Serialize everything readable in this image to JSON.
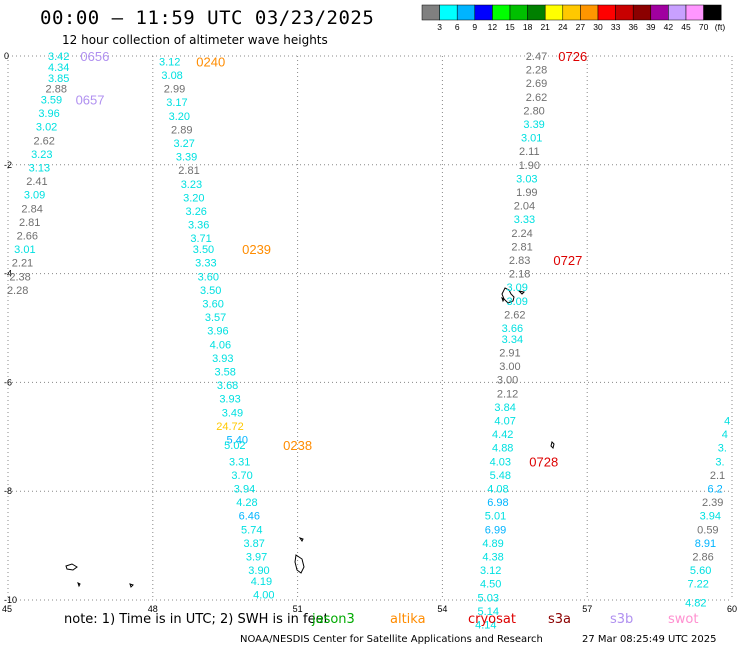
{
  "header": {
    "title": "00:00 – 11:59 UTC 03/23/2025",
    "subtitle": "12 hour collection of altimeter wave heights"
  },
  "legend": {
    "labels": [
      "3",
      "6",
      "9",
      "12",
      "15",
      "18",
      "21",
      "24",
      "27",
      "30",
      "33",
      "36",
      "39",
      "42",
      "45",
      "70"
    ],
    "unit": "(ft)",
    "colors": [
      "#808080",
      "#00ffff",
      "#00b4ff",
      "#0000ff",
      "#00ff00",
      "#00c000",
      "#008000",
      "#ffff00",
      "#ffc800",
      "#ff9600",
      "#ff0000",
      "#c80000",
      "#8b0000",
      "#a000a0",
      "#c8a0ff",
      "#ff96ff",
      "#000000"
    ]
  },
  "axes": {
    "y_labels": [
      "0",
      "-2",
      "-4",
      "-6",
      "-8",
      "-10"
    ],
    "x_labels": [
      "45",
      "48",
      "51",
      "54",
      "57",
      "60"
    ],
    "lon_range": [
      45,
      60
    ],
    "lat_range": [
      -10,
      0
    ],
    "grid": true
  },
  "tracks": [
    {
      "name": "track-1",
      "points": [
        {
          "lon": 46.05,
          "lat": 0.0,
          "v": "3.42",
          "c": "#00e0e0"
        },
        {
          "lon": 46.05,
          "lat": -0.2,
          "v": "4.34",
          "c": "#00e0e0"
        },
        {
          "lon": 46.05,
          "lat": -0.4,
          "v": "3.85",
          "c": "#00e0e0"
        },
        {
          "lon": 46.0,
          "lat": -0.6,
          "v": "2.88",
          "c": "#707070"
        },
        {
          "lon": 45.9,
          "lat": -0.8,
          "v": "3.59",
          "c": "#00e0e0"
        },
        {
          "lon": 45.85,
          "lat": -1.05,
          "v": "3.96",
          "c": "#00e0e0"
        },
        {
          "lon": 45.8,
          "lat": -1.3,
          "v": "3.02",
          "c": "#00e0e0"
        },
        {
          "lon": 45.75,
          "lat": -1.55,
          "v": "2.62",
          "c": "#707070"
        },
        {
          "lon": 45.7,
          "lat": -1.8,
          "v": "3.23",
          "c": "#00e0e0"
        },
        {
          "lon": 45.65,
          "lat": -2.05,
          "v": "3.13",
          "c": "#00e0e0"
        },
        {
          "lon": 45.6,
          "lat": -2.3,
          "v": "2.41",
          "c": "#707070"
        },
        {
          "lon": 45.55,
          "lat": -2.55,
          "v": "3.09",
          "c": "#00e0e0"
        },
        {
          "lon": 45.5,
          "lat": -2.8,
          "v": "2.84",
          "c": "#707070"
        },
        {
          "lon": 45.45,
          "lat": -3.05,
          "v": "2.81",
          "c": "#707070"
        },
        {
          "lon": 45.4,
          "lat": -3.3,
          "v": "2.66",
          "c": "#707070"
        },
        {
          "lon": 45.35,
          "lat": -3.55,
          "v": "3.01",
          "c": "#00e0e0"
        },
        {
          "lon": 45.3,
          "lat": -3.8,
          "v": "2.21",
          "c": "#707070"
        },
        {
          "lon": 45.25,
          "lat": -4.05,
          "v": "2.38",
          "c": "#707070"
        },
        {
          "lon": 45.2,
          "lat": -4.3,
          "v": "2.28",
          "c": "#707070"
        }
      ]
    },
    {
      "name": "track-2",
      "points": [
        {
          "lon": 48.35,
          "lat": -0.1,
          "v": "3.12",
          "c": "#00e0e0"
        },
        {
          "lon": 48.4,
          "lat": -0.35,
          "v": "3.08",
          "c": "#00e0e0"
        },
        {
          "lon": 48.45,
          "lat": -0.6,
          "v": "2.99",
          "c": "#707070"
        },
        {
          "lon": 48.5,
          "lat": -0.85,
          "v": "3.17",
          "c": "#00e0e0"
        },
        {
          "lon": 48.55,
          "lat": -1.1,
          "v": "3.20",
          "c": "#00e0e0"
        },
        {
          "lon": 48.6,
          "lat": -1.35,
          "v": "2.89",
          "c": "#707070"
        },
        {
          "lon": 48.65,
          "lat": -1.6,
          "v": "3.27",
          "c": "#00e0e0"
        },
        {
          "lon": 48.7,
          "lat": -1.85,
          "v": "3.39",
          "c": "#00e0e0"
        },
        {
          "lon": 48.75,
          "lat": -2.1,
          "v": "2.81",
          "c": "#707070"
        },
        {
          "lon": 48.8,
          "lat": -2.35,
          "v": "3.23",
          "c": "#00e0e0"
        },
        {
          "lon": 48.85,
          "lat": -2.6,
          "v": "3.20",
          "c": "#00e0e0"
        },
        {
          "lon": 48.9,
          "lat": -2.85,
          "v": "3.26",
          "c": "#00e0e0"
        },
        {
          "lon": 48.95,
          "lat": -3.1,
          "v": "3.36",
          "c": "#00e0e0"
        },
        {
          "lon": 49.0,
          "lat": -3.35,
          "v": "3.71",
          "c": "#00e0e0"
        },
        {
          "lon": 49.05,
          "lat": -3.55,
          "v": "3.50",
          "c": "#00e0e0"
        },
        {
          "lon": 49.1,
          "lat": -3.8,
          "v": "3.33",
          "c": "#00e0e0"
        },
        {
          "lon": 49.15,
          "lat": -4.05,
          "v": "3.60",
          "c": "#00e0e0"
        },
        {
          "lon": 49.2,
          "lat": -4.3,
          "v": "3.50",
          "c": "#00e0e0"
        },
        {
          "lon": 49.25,
          "lat": -4.55,
          "v": "3.60",
          "c": "#00e0e0"
        },
        {
          "lon": 49.3,
          "lat": -4.8,
          "v": "3.57",
          "c": "#00e0e0"
        },
        {
          "lon": 49.35,
          "lat": -5.05,
          "v": "3.96",
          "c": "#00e0e0"
        },
        {
          "lon": 49.4,
          "lat": -5.3,
          "v": "4.06",
          "c": "#00e0e0"
        },
        {
          "lon": 49.45,
          "lat": -5.55,
          "v": "3.93",
          "c": "#00e0e0"
        },
        {
          "lon": 49.5,
          "lat": -5.8,
          "v": "3.58",
          "c": "#00e0e0"
        },
        {
          "lon": 49.55,
          "lat": -6.05,
          "v": "3.68",
          "c": "#00e0e0"
        },
        {
          "lon": 49.6,
          "lat": -6.3,
          "v": "3.93",
          "c": "#00e0e0"
        },
        {
          "lon": 49.65,
          "lat": -6.55,
          "v": "3.49",
          "c": "#00e0e0"
        },
        {
          "lon": 49.6,
          "lat": -6.8,
          "v": "24.72",
          "c": "#ffc800"
        },
        {
          "lon": 49.75,
          "lat": -7.05,
          "v": "5.40",
          "c": "#00b4ff"
        },
        {
          "lon": 49.7,
          "lat": -7.15,
          "v": "5.02",
          "c": "#00e0e0"
        },
        {
          "lon": 49.8,
          "lat": -7.45,
          "v": "3.31",
          "c": "#00e0e0"
        },
        {
          "lon": 49.85,
          "lat": -7.7,
          "v": "3.70",
          "c": "#00e0e0"
        },
        {
          "lon": 49.9,
          "lat": -7.95,
          "v": "3.94",
          "c": "#00e0e0"
        },
        {
          "lon": 49.95,
          "lat": -8.2,
          "v": "4.28",
          "c": "#00e0e0"
        },
        {
          "lon": 50.0,
          "lat": -8.45,
          "v": "6.46",
          "c": "#00b4ff"
        },
        {
          "lon": 50.05,
          "lat": -8.7,
          "v": "5.74",
          "c": "#00e0e0"
        },
        {
          "lon": 50.1,
          "lat": -8.95,
          "v": "3.87",
          "c": "#00e0e0"
        },
        {
          "lon": 50.15,
          "lat": -9.2,
          "v": "3.97",
          "c": "#00e0e0"
        },
        {
          "lon": 50.2,
          "lat": -9.45,
          "v": "3.90",
          "c": "#00e0e0"
        },
        {
          "lon": 50.25,
          "lat": -9.65,
          "v": "4.19",
          "c": "#00e0e0"
        },
        {
          "lon": 50.3,
          "lat": -9.9,
          "v": "4.00",
          "c": "#00e0e0"
        }
      ]
    },
    {
      "name": "track-3",
      "points": [
        {
          "lon": 55.95,
          "lat": 0.0,
          "v": "2.47",
          "c": "#707070"
        },
        {
          "lon": 55.95,
          "lat": -0.25,
          "v": "2.28",
          "c": "#707070"
        },
        {
          "lon": 55.95,
          "lat": -0.5,
          "v": "2.69",
          "c": "#707070"
        },
        {
          "lon": 55.95,
          "lat": -0.75,
          "v": "2.62",
          "c": "#707070"
        },
        {
          "lon": 55.9,
          "lat": -1.0,
          "v": "2.80",
          "c": "#707070"
        },
        {
          "lon": 55.9,
          "lat": -1.25,
          "v": "3.39",
          "c": "#00e0e0"
        },
        {
          "lon": 55.85,
          "lat": -1.5,
          "v": "3.01",
          "c": "#00e0e0"
        },
        {
          "lon": 55.8,
          "lat": -1.75,
          "v": "2.11",
          "c": "#707070"
        },
        {
          "lon": 55.8,
          "lat": -2.0,
          "v": "1.90",
          "c": "#707070"
        },
        {
          "lon": 55.75,
          "lat": -2.25,
          "v": "3.03",
          "c": "#00e0e0"
        },
        {
          "lon": 55.75,
          "lat": -2.5,
          "v": "1.99",
          "c": "#707070"
        },
        {
          "lon": 55.7,
          "lat": -2.75,
          "v": "2.04",
          "c": "#707070"
        },
        {
          "lon": 55.7,
          "lat": -3.0,
          "v": "3.33",
          "c": "#00e0e0"
        },
        {
          "lon": 55.65,
          "lat": -3.25,
          "v": "2.24",
          "c": "#707070"
        },
        {
          "lon": 55.65,
          "lat": -3.5,
          "v": "2.81",
          "c": "#707070"
        },
        {
          "lon": 55.6,
          "lat": -3.75,
          "v": "2.83",
          "c": "#707070"
        },
        {
          "lon": 55.6,
          "lat": -4.0,
          "v": "2.18",
          "c": "#707070"
        },
        {
          "lon": 55.55,
          "lat": -4.25,
          "v": "3.09",
          "c": "#00e0e0"
        },
        {
          "lon": 55.55,
          "lat": -4.5,
          "v": "3.09",
          "c": "#00e0e0"
        },
        {
          "lon": 55.5,
          "lat": -4.75,
          "v": "2.62",
          "c": "#707070"
        },
        {
          "lon": 55.45,
          "lat": -5.0,
          "v": "3.66",
          "c": "#00e0e0"
        },
        {
          "lon": 55.45,
          "lat": -5.2,
          "v": "3.34",
          "c": "#00e0e0"
        },
        {
          "lon": 55.4,
          "lat": -5.45,
          "v": "2.91",
          "c": "#707070"
        },
        {
          "lon": 55.4,
          "lat": -5.7,
          "v": "3.00",
          "c": "#707070"
        },
        {
          "lon": 55.35,
          "lat": -5.95,
          "v": "3.00",
          "c": "#707070"
        },
        {
          "lon": 55.35,
          "lat": -6.2,
          "v": "2.12",
          "c": "#707070"
        },
        {
          "lon": 55.3,
          "lat": -6.45,
          "v": "3.84",
          "c": "#00e0e0"
        },
        {
          "lon": 55.3,
          "lat": -6.7,
          "v": "4.07",
          "c": "#00e0e0"
        },
        {
          "lon": 55.25,
          "lat": -6.95,
          "v": "4.42",
          "c": "#00e0e0"
        },
        {
          "lon": 55.25,
          "lat": -7.2,
          "v": "4.88",
          "c": "#00e0e0"
        },
        {
          "lon": 55.2,
          "lat": -7.45,
          "v": "4.03",
          "c": "#00e0e0"
        },
        {
          "lon": 55.2,
          "lat": -7.7,
          "v": "5.48",
          "c": "#00e0e0"
        },
        {
          "lon": 55.15,
          "lat": -7.95,
          "v": "4.08",
          "c": "#00e0e0"
        },
        {
          "lon": 55.15,
          "lat": -8.2,
          "v": "6.98",
          "c": "#00b4ff"
        },
        {
          "lon": 55.1,
          "lat": -8.45,
          "v": "5.01",
          "c": "#00e0e0"
        },
        {
          "lon": 55.1,
          "lat": -8.7,
          "v": "6.99",
          "c": "#00b4ff"
        },
        {
          "lon": 55.05,
          "lat": -8.95,
          "v": "4.89",
          "c": "#00e0e0"
        },
        {
          "lon": 55.05,
          "lat": -9.2,
          "v": "4.38",
          "c": "#00e0e0"
        },
        {
          "lon": 55.0,
          "lat": -9.45,
          "v": "3.12",
          "c": "#00e0e0"
        },
        {
          "lon": 55.0,
          "lat": -9.7,
          "v": "4.50",
          "c": "#00e0e0"
        },
        {
          "lon": 54.95,
          "lat": -9.95,
          "v": "5.03",
          "c": "#00e0e0"
        },
        {
          "lon": 54.95,
          "lat": -10.2,
          "v": "5.14",
          "c": "#00e0e0"
        },
        {
          "lon": 54.9,
          "lat": -10.45,
          "v": "4.14",
          "c": "#00e0e0"
        }
      ]
    },
    {
      "name": "track-4",
      "points": [
        {
          "lon": 59.9,
          "lat": -6.7,
          "v": "4",
          "c": "#00e0e0"
        },
        {
          "lon": 59.85,
          "lat": -6.95,
          "v": "4",
          "c": "#00e0e0"
        },
        {
          "lon": 59.8,
          "lat": -7.2,
          "v": "3.",
          "c": "#00e0e0"
        },
        {
          "lon": 59.75,
          "lat": -7.45,
          "v": "3.",
          "c": "#00e0e0"
        },
        {
          "lon": 59.7,
          "lat": -7.7,
          "v": "2.1",
          "c": "#707070"
        },
        {
          "lon": 59.65,
          "lat": -7.95,
          "v": "6.2",
          "c": "#00b4ff"
        },
        {
          "lon": 59.6,
          "lat": -8.2,
          "v": "2.39",
          "c": "#707070"
        },
        {
          "lon": 59.55,
          "lat": -8.45,
          "v": "3.94",
          "c": "#00e0e0"
        },
        {
          "lon": 59.5,
          "lat": -8.7,
          "v": "0.59",
          "c": "#707070"
        },
        {
          "lon": 59.45,
          "lat": -8.95,
          "v": "8.91",
          "c": "#00b4ff"
        },
        {
          "lon": 59.4,
          "lat": -9.2,
          "v": "2.86",
          "c": "#707070"
        },
        {
          "lon": 59.35,
          "lat": -9.45,
          "v": "5.60",
          "c": "#00e0e0"
        },
        {
          "lon": 59.3,
          "lat": -9.7,
          "v": "7.22",
          "c": "#00e0e0"
        },
        {
          "lon": 59.25,
          "lat": -10.05,
          "v": "4.82",
          "c": "#00e0e0"
        }
      ]
    }
  ],
  "time_labels": [
    {
      "text": "0656",
      "lon": 46.8,
      "lat": 0.0,
      "c": "#b090f0"
    },
    {
      "text": "0657",
      "lon": 46.7,
      "lat": -0.8,
      "c": "#b090f0"
    },
    {
      "text": "0240",
      "lon": 49.2,
      "lat": -0.1,
      "c": "#ff8c00"
    },
    {
      "text": "0239",
      "lon": 50.15,
      "lat": -3.55,
      "c": "#ff8c00"
    },
    {
      "text": "0238",
      "lon": 51.0,
      "lat": -7.15,
      "c": "#ff8c00"
    },
    {
      "text": "0726",
      "lon": 56.7,
      "lat": 0.0,
      "c": "#dd0000"
    },
    {
      "text": "0727",
      "lon": 56.6,
      "lat": -3.75,
      "c": "#dd0000"
    },
    {
      "text": "0728",
      "lon": 56.1,
      "lat": -7.45,
      "c": "#dd0000"
    }
  ],
  "footer": {
    "note": "note:  1) Time is in UTC;  2) SWH is in feet",
    "credit": "NOAA/NESDIS Center for Satellite Applications and Research",
    "date": "27 Mar 08:25:49 UTC 2025",
    "satellites": [
      {
        "name": "jason3",
        "color": "#00aa00"
      },
      {
        "name": "altika",
        "color": "#ff8c00"
      },
      {
        "name": "cryosat",
        "color": "#dd0000"
      },
      {
        "name": "s3a",
        "color": "#8b0000"
      },
      {
        "name": "s3b",
        "color": "#b090f0"
      },
      {
        "name": "swot",
        "color": "#ff90d0"
      }
    ]
  }
}
